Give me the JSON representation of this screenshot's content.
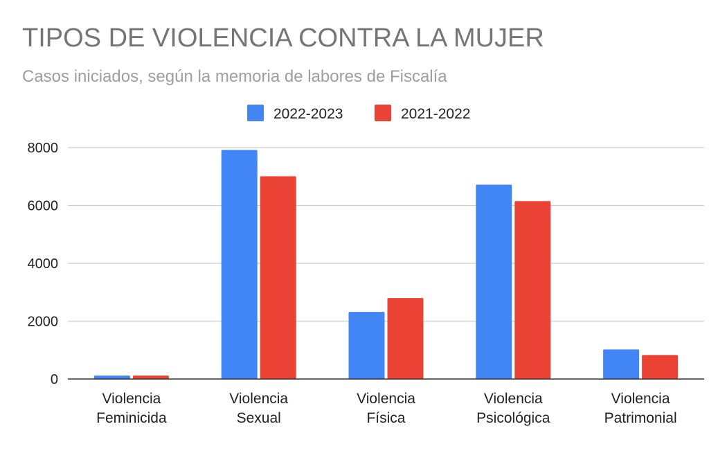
{
  "chart_data": {
    "type": "bar",
    "title": "TIPOS DE VIOLENCIA CONTRA LA MUJER",
    "subtitle": "Casos iniciados, según la memoria de labores de Fiscalía",
    "categories": [
      [
        "Violencia",
        "Feminicida"
      ],
      [
        "Violencia",
        "Sexual"
      ],
      [
        "Violencia",
        "Física"
      ],
      [
        "Violencia",
        "Psicológica"
      ],
      [
        "Violencia",
        "Patrimonial"
      ]
    ],
    "series": [
      {
        "name": "2022-2023",
        "color": "#4285f4",
        "values": [
          120,
          7920,
          2320,
          6720,
          1020
        ]
      },
      {
        "name": "2021-2022",
        "color": "#ea4335",
        "values": [
          120,
          7010,
          2800,
          6150,
          830
        ]
      }
    ],
    "yticks": [
      "0",
      "2000",
      "4000",
      "6000",
      "8000"
    ],
    "ylim": [
      0,
      8000
    ],
    "grid": true,
    "legend_position": "top-center"
  }
}
